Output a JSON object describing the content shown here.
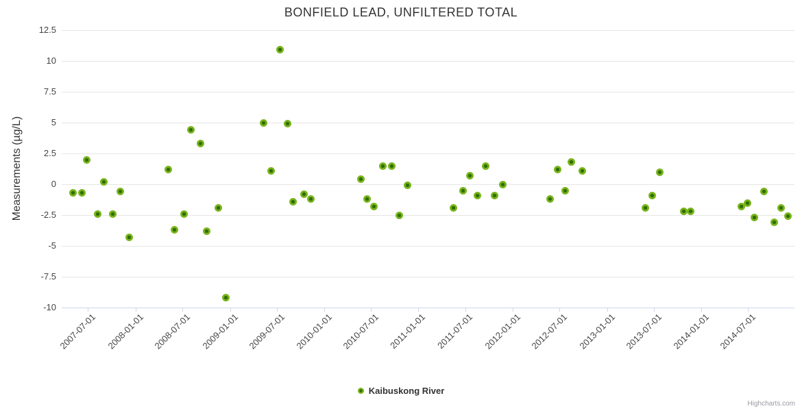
{
  "credits": {
    "label": "Highcharts.com"
  },
  "chart_data": {
    "type": "scatter",
    "title": "BONFIELD LEAD, UNFILTERED TOTAL",
    "xlabel": "",
    "ylabel": "Measurements (µg/L)",
    "ylim": [
      -10,
      12.5
    ],
    "y_ticks": [
      12.5,
      10,
      7.5,
      5,
      2.5,
      0,
      -2.5,
      -5,
      -7.5,
      -10
    ],
    "x_ticks": [
      "2007-07-01",
      "2008-01-01",
      "2008-07-01",
      "2009-01-01",
      "2009-07-01",
      "2010-01-01",
      "2010-07-01",
      "2011-01-01",
      "2011-07-01",
      "2012-01-01",
      "2012-07-01",
      "2013-01-01",
      "2013-07-01",
      "2014-01-01",
      "2014-07-01"
    ],
    "grid": "horizontal",
    "legend_position": "bottom-center",
    "colors": {
      "marker_line": "#7ab41c",
      "marker_fill": "#2d6e07",
      "gridline": "#e6e6e6",
      "tick": "#ccd6eb",
      "title_text": "#333333",
      "label_text": "#444444",
      "credits_text": "#999aa3"
    },
    "point_keys": [
      "date",
      "value"
    ],
    "series": [
      {
        "name": "Kaibuskong River",
        "points": [
          [
            "2007-05-03",
            -0.7
          ],
          [
            "2007-06-07",
            -0.7
          ],
          [
            "2007-06-26",
            2.0
          ],
          [
            "2007-08-07",
            -2.4
          ],
          [
            "2007-09-01",
            0.2
          ],
          [
            "2007-10-05",
            -2.4
          ],
          [
            "2007-11-03",
            -0.6
          ],
          [
            "2007-12-08",
            -4.3
          ],
          [
            "2008-05-07",
            1.2
          ],
          [
            "2008-05-31",
            -3.7
          ],
          [
            "2008-07-07",
            -2.4
          ],
          [
            "2008-08-03",
            4.4
          ],
          [
            "2008-09-10",
            3.3
          ],
          [
            "2008-10-03",
            -3.8
          ],
          [
            "2008-11-18",
            -1.9
          ],
          [
            "2008-12-17",
            -9.2
          ],
          [
            "2009-05-11",
            5.0
          ],
          [
            "2009-06-10",
            1.1
          ],
          [
            "2009-07-14",
            10.9
          ],
          [
            "2009-08-12",
            4.9
          ],
          [
            "2009-09-01",
            -1.4
          ],
          [
            "2009-10-15",
            -0.8
          ],
          [
            "2009-11-11",
            -1.2
          ],
          [
            "2010-05-23",
            0.4
          ],
          [
            "2010-06-16",
            -1.2
          ],
          [
            "2010-07-12",
            -1.8
          ],
          [
            "2010-08-16",
            1.5
          ],
          [
            "2010-09-20",
            1.5
          ],
          [
            "2010-10-19",
            -2.5
          ],
          [
            "2010-11-20",
            -0.1
          ],
          [
            "2011-05-18",
            -1.9
          ],
          [
            "2011-06-22",
            -0.5
          ],
          [
            "2011-07-19",
            0.7
          ],
          [
            "2011-08-17",
            -0.9
          ],
          [
            "2011-09-19",
            1.5
          ],
          [
            "2011-10-22",
            -0.9
          ],
          [
            "2011-11-24",
            0.0
          ],
          [
            "2012-05-25",
            -1.2
          ],
          [
            "2012-06-23",
            1.2
          ],
          [
            "2012-07-22",
            -0.5
          ],
          [
            "2012-08-16",
            1.8
          ],
          [
            "2012-09-28",
            1.1
          ],
          [
            "2013-05-29",
            -1.9
          ],
          [
            "2013-06-25",
            -0.9
          ],
          [
            "2013-07-24",
            1.0
          ],
          [
            "2013-10-25",
            -2.2
          ],
          [
            "2013-11-21",
            -2.2
          ],
          [
            "2014-06-05",
            -1.8
          ],
          [
            "2014-06-29",
            -1.5
          ],
          [
            "2014-07-25",
            -2.7
          ],
          [
            "2014-09-01",
            -0.6
          ],
          [
            "2014-10-11",
            -3.1
          ],
          [
            "2014-11-06",
            -1.9
          ],
          [
            "2014-12-02",
            -2.6
          ]
        ]
      }
    ]
  }
}
